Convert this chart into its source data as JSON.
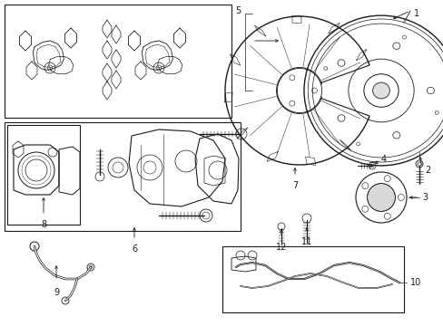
{
  "background_color": "#ffffff",
  "line_color": "#1a1a1a",
  "fig_width": 4.89,
  "fig_height": 3.6,
  "dpi": 100,
  "label_fontsize": 7.0
}
